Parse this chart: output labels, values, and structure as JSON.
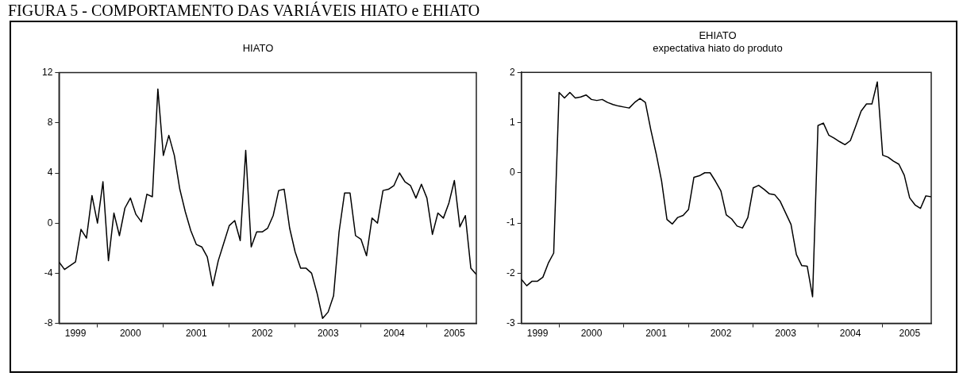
{
  "chart_data": [
    {
      "type": "line",
      "title": "HIATO",
      "annotations": [
        "FIGURA 5 - COMPORTAMENTO DAS VARIÁVEIS HIATO e EHIATO"
      ],
      "x": [
        "1999-06",
        "1999-07",
        "1999-08",
        "1999-09",
        "1999-10",
        "1999-11",
        "1999-12",
        "2000-01",
        "2000-02",
        "2000-03",
        "2000-04",
        "2000-05",
        "2000-06",
        "2000-07",
        "2000-08",
        "2000-09",
        "2000-10",
        "2000-11",
        "2000-12",
        "2001-01",
        "2001-02",
        "2001-03",
        "2001-04",
        "2001-05",
        "2001-06",
        "2001-07",
        "2001-08",
        "2001-09",
        "2001-10",
        "2001-11",
        "2001-12",
        "2002-01",
        "2002-02",
        "2002-03",
        "2002-04",
        "2002-05",
        "2002-06",
        "2002-07",
        "2002-08",
        "2002-09",
        "2002-10",
        "2002-11",
        "2002-12",
        "2003-01",
        "2003-02",
        "2003-03",
        "2003-04",
        "2003-05",
        "2003-06",
        "2003-07",
        "2003-08",
        "2003-09",
        "2003-10",
        "2003-11",
        "2003-12",
        "2004-01",
        "2004-02",
        "2004-03",
        "2004-04",
        "2004-05",
        "2004-06",
        "2004-07",
        "2004-08",
        "2004-09",
        "2004-10",
        "2004-11",
        "2004-12",
        "2005-01",
        "2005-02",
        "2005-03",
        "2005-04",
        "2005-05",
        "2005-06",
        "2005-07",
        "2005-08",
        "2005-09",
        "2005-10"
      ],
      "series": [
        {
          "color": "#000000",
          "values": [
            -3.1,
            -3.7,
            -3.4,
            -3.1,
            -0.5,
            -1.2,
            2.2,
            0,
            3.3,
            -3.0,
            0.8,
            -1.0,
            1.2,
            2.0,
            0.7,
            0.1,
            2.3,
            2.1,
            10.7,
            5.4,
            7.0,
            5.4,
            2.7,
            0.9,
            -0.6,
            -1.7,
            -1.9,
            -2.7,
            -5.0,
            -3.0,
            -1.6,
            -0.2,
            0.2,
            -1.4,
            5.8,
            -1.9,
            -0.7,
            -0.7,
            -0.4,
            0.6,
            2.6,
            2.7,
            -0.4,
            -2.3,
            -3.6,
            -3.6,
            -4.0,
            -5.6,
            -7.6,
            -7.1,
            -5.8,
            -0.7,
            2.4,
            2.4,
            -1.0,
            -1.3,
            -2.6,
            0.4,
            0.0,
            2.6,
            2.7,
            3.0,
            4.0,
            3.3,
            3.0,
            2.0,
            3.1,
            2.0,
            -0.9,
            0.8,
            0.4,
            1.6,
            3.4,
            -0.3,
            0.6,
            -3.6,
            -4.1
          ]
        }
      ],
      "xlim": [
        "1999-06",
        "2005-10"
      ],
      "xticks": [
        {
          "value": "1999-09",
          "label": "1999"
        },
        {
          "value": "2000-01",
          "label": null
        },
        {
          "value": "2000-07",
          "label": "2000"
        },
        {
          "value": "2001-01",
          "label": null
        },
        {
          "value": "2001-07",
          "label": "2001"
        },
        {
          "value": "2002-01",
          "label": null
        },
        {
          "value": "2002-07",
          "label": "2002"
        },
        {
          "value": "2003-01",
          "label": null
        },
        {
          "value": "2003-07",
          "label": "2003"
        },
        {
          "value": "2004-01",
          "label": null
        },
        {
          "value": "2004-07",
          "label": "2004"
        },
        {
          "value": "2005-01",
          "label": null
        },
        {
          "value": "2005-06",
          "label": "2005"
        }
      ],
      "ylim": [
        -8,
        12
      ],
      "yticks": [
        -8,
        -4,
        0,
        4,
        8,
        12
      ],
      "grid": false,
      "legend": false
    },
    {
      "type": "line",
      "title": "EHIATO",
      "subtitle": "expectativa hiato do produto",
      "x": [
        "1999-06",
        "1999-07",
        "1999-08",
        "1999-09",
        "1999-10",
        "1999-11",
        "1999-12",
        "2000-01",
        "2000-02",
        "2000-03",
        "2000-04",
        "2000-05",
        "2000-06",
        "2000-07",
        "2000-08",
        "2000-09",
        "2000-10",
        "2000-11",
        "2000-12",
        "2001-01",
        "2001-02",
        "2001-03",
        "2001-04",
        "2001-05",
        "2001-06",
        "2001-07",
        "2001-08",
        "2001-09",
        "2001-10",
        "2001-11",
        "2001-12",
        "2002-01",
        "2002-02",
        "2002-03",
        "2002-04",
        "2002-05",
        "2002-06",
        "2002-07",
        "2002-08",
        "2002-09",
        "2002-10",
        "2002-11",
        "2002-12",
        "2003-01",
        "2003-02",
        "2003-03",
        "2003-04",
        "2003-05",
        "2003-06",
        "2003-07",
        "2003-08",
        "2003-09",
        "2003-10",
        "2003-11",
        "2003-12",
        "2004-01",
        "2004-02",
        "2004-03",
        "2004-04",
        "2004-05",
        "2004-06",
        "2004-07",
        "2004-08",
        "2004-09",
        "2004-10",
        "2004-11",
        "2004-12",
        "2005-01",
        "2005-02",
        "2005-03",
        "2005-04",
        "2005-05",
        "2005-06",
        "2005-07",
        "2005-08",
        "2005-09",
        "2005-10"
      ],
      "series": [
        {
          "color": "#000000",
          "values": [
            -2.12,
            -2.25,
            -2.16,
            -2.16,
            -2.08,
            -1.8,
            -1.6,
            1.6,
            1.49,
            1.6,
            1.49,
            1.51,
            1.55,
            1.46,
            1.44,
            1.46,
            1.4,
            1.36,
            1.33,
            1.31,
            1.29,
            1.4,
            1.48,
            1.4,
            0.86,
            0.38,
            -0.16,
            -0.93,
            -1.02,
            -0.89,
            -0.85,
            -0.73,
            -0.09,
            -0.06,
            0,
            0,
            -0.17,
            -0.36,
            -0.84,
            -0.92,
            -1.06,
            -1.1,
            -0.89,
            -0.3,
            -0.25,
            -0.33,
            -0.42,
            -0.44,
            -0.57,
            -0.8,
            -1.03,
            -1.63,
            -1.85,
            -1.86,
            -2.47,
            0.94,
            0.99,
            0.75,
            0.69,
            0.62,
            0.56,
            0.64,
            0.93,
            1.23,
            1.37,
            1.37,
            1.81,
            0.35,
            0.31,
            0.23,
            0.17,
            -0.05,
            -0.5,
            -0.64,
            -0.71,
            -0.46,
            -0.48
          ]
        }
      ],
      "xlim": [
        "1999-06",
        "2005-10"
      ],
      "xticks": [
        {
          "value": "1999-09",
          "label": "1999"
        },
        {
          "value": "2000-01",
          "label": null
        },
        {
          "value": "2000-07",
          "label": "2000"
        },
        {
          "value": "2001-01",
          "label": null
        },
        {
          "value": "2001-07",
          "label": "2001"
        },
        {
          "value": "2002-01",
          "label": null
        },
        {
          "value": "2002-07",
          "label": "2002"
        },
        {
          "value": "2003-01",
          "label": null
        },
        {
          "value": "2003-07",
          "label": "2003"
        },
        {
          "value": "2004-01",
          "label": null
        },
        {
          "value": "2004-07",
          "label": "2004"
        },
        {
          "value": "2005-01",
          "label": null
        },
        {
          "value": "2005-06",
          "label": "2005"
        }
      ],
      "ylim": [
        -3,
        2
      ],
      "yticks": [
        -3,
        -2,
        -1,
        0,
        1,
        2
      ],
      "grid": false,
      "legend": false
    }
  ]
}
